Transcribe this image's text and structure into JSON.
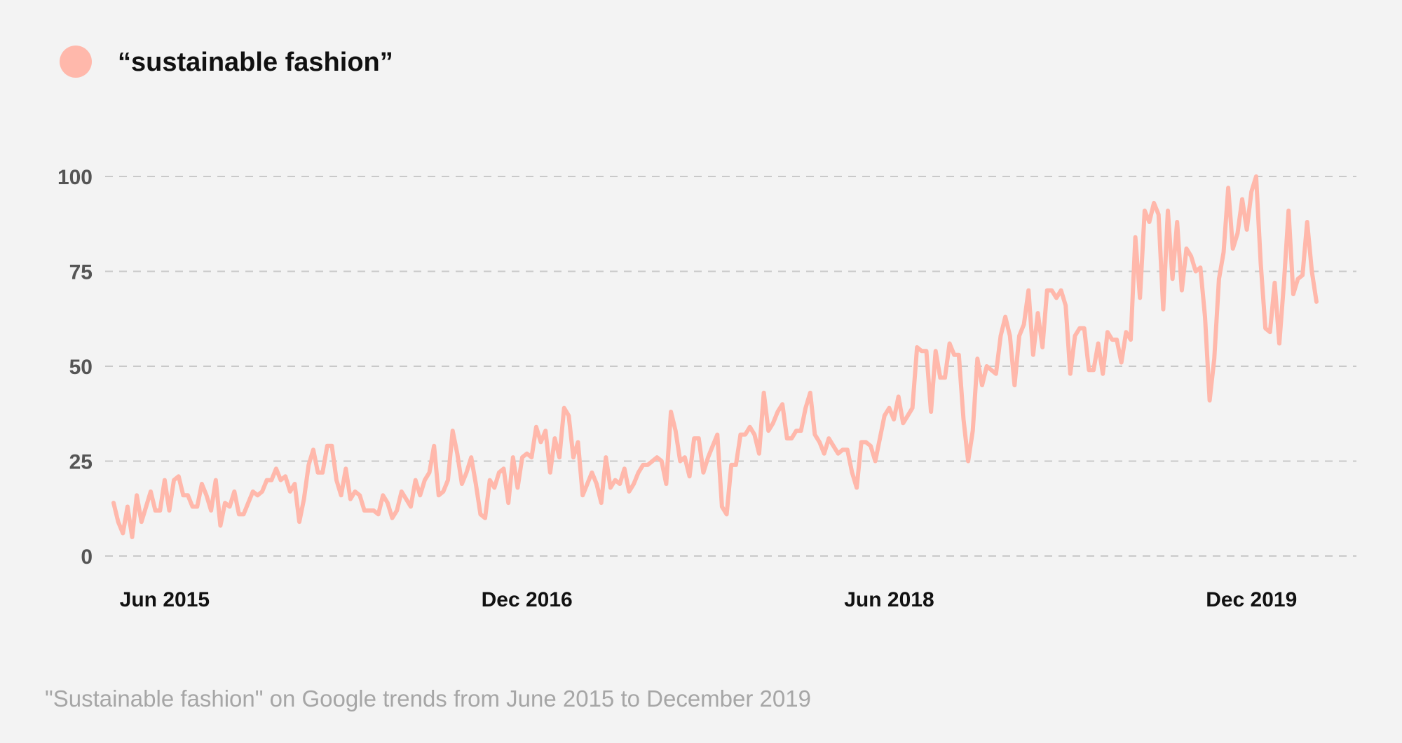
{
  "chart_data": {
    "type": "line",
    "title": "",
    "xlabel": "",
    "ylabel": "",
    "ylim": [
      0,
      100
    ],
    "yticks": [
      0,
      25,
      50,
      75,
      100
    ],
    "x_tick_labels": [
      "Jun 2015",
      "Dec 2016",
      "Jun 2018",
      "Dec 2019"
    ],
    "grid": "horizontal dashed",
    "legend_position": "top-left",
    "caption": "\"Sustainable fashion\" on Google trends from June 2015 to December 2019",
    "series": [
      {
        "name": "“sustainable fashion”",
        "color": "#ffb8ab",
        "values": [
          14,
          9,
          6,
          13,
          5,
          16,
          9,
          13,
          17,
          12,
          12,
          20,
          12,
          20,
          21,
          16,
          16,
          13,
          13,
          19,
          16,
          12,
          20,
          8,
          14,
          13,
          17,
          11,
          11,
          14,
          17,
          16,
          17,
          20,
          20,
          23,
          20,
          21,
          17,
          19,
          9,
          15,
          24,
          28,
          22,
          22,
          29,
          29,
          20,
          16,
          23,
          15,
          17,
          16,
          12,
          12,
          12,
          11,
          16,
          14,
          10,
          12,
          17,
          15,
          13,
          20,
          16,
          20,
          22,
          29,
          16,
          17,
          20,
          33,
          27,
          19,
          22,
          26,
          19,
          11,
          10,
          20,
          18,
          22,
          23,
          14,
          26,
          18,
          26,
          27,
          26,
          34,
          30,
          33,
          22,
          31,
          26,
          39,
          37,
          26,
          30,
          16,
          19,
          22,
          19,
          14,
          26,
          18,
          20,
          19,
          23,
          17,
          19,
          22,
          24,
          24,
          25,
          26,
          25,
          19,
          38,
          33,
          25,
          26,
          21,
          31,
          31,
          22,
          26,
          29,
          32,
          13,
          11,
          24,
          24,
          32,
          32,
          34,
          32,
          27,
          43,
          33,
          35,
          38,
          40,
          31,
          31,
          33,
          33,
          39,
          43,
          32,
          30,
          27,
          31,
          29,
          27,
          28,
          28,
          22,
          18,
          30,
          30,
          29,
          25,
          31,
          37,
          39,
          36,
          42,
          35,
          37,
          39,
          55,
          54,
          54,
          38,
          54,
          47,
          47,
          56,
          53,
          53,
          36,
          25,
          33,
          52,
          45,
          50,
          49,
          48,
          58,
          63,
          58,
          45,
          58,
          61,
          70,
          53,
          64,
          55,
          70,
          70,
          68,
          70,
          66,
          48,
          58,
          60,
          60,
          49,
          49,
          56,
          48,
          59,
          57,
          57,
          51,
          59,
          57,
          84,
          68,
          91,
          88,
          93,
          90,
          65,
          91,
          73,
          88,
          70,
          81,
          79,
          75,
          76,
          63,
          41,
          52,
          73,
          80,
          97,
          81,
          85,
          94,
          86,
          96,
          100,
          77,
          60,
          59,
          72,
          56,
          72,
          91,
          69,
          73,
          74,
          88,
          75,
          67
        ]
      }
    ]
  }
}
